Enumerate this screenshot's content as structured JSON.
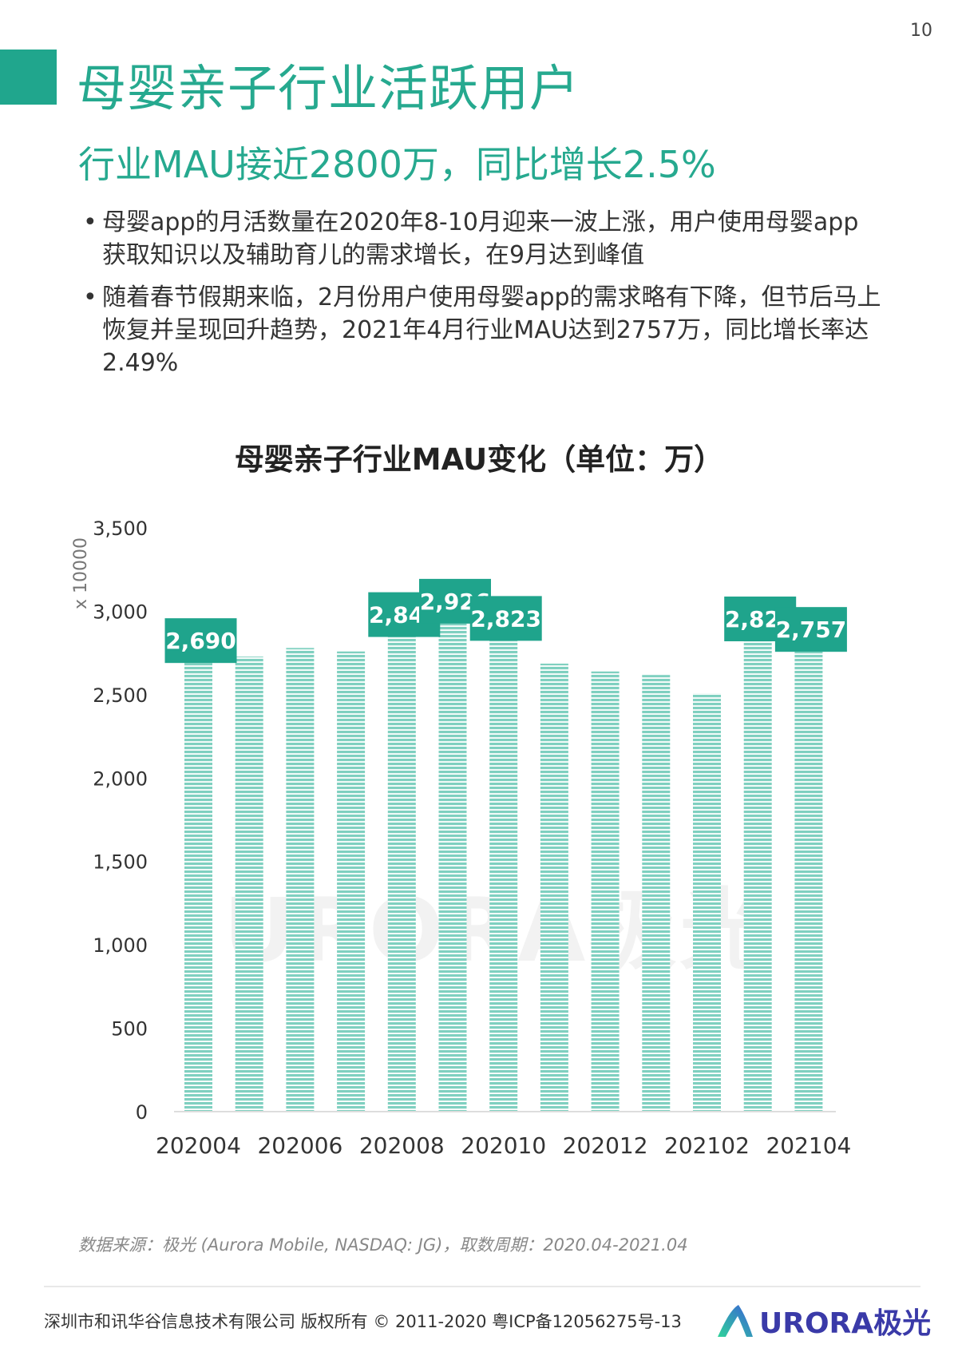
{
  "page_number": "10",
  "title": "母婴亲子行业活跃用户",
  "subtitle": "行业MAU接近2800万，同比增长2.5%",
  "bullets": [
    "母婴app的月活数量在2020年8-10月迎来一波上涨，用户使用母婴app获取知识以及辅助育儿的需求增长，在9月达到峰值",
    "随着春节假期来临，2月份用户使用母婴app的需求略有下降，但节后马上恢复并呈现回升趋势，2021年4月行业MAU达到2757万，同比增长率达2.49%"
  ],
  "bullet_symbol": "•",
  "colors": {
    "accent": "#20a68d",
    "bar": "#7fd0c0",
    "label_bg": "#1fa48c"
  },
  "chart_data": {
    "type": "bar",
    "title": "母婴亲子行业MAU变化（单位：万）",
    "ylabel": "x 10000",
    "xlabel": "",
    "ylim": [
      0,
      3500
    ],
    "yticks": [
      0,
      500,
      1000,
      1500,
      2000,
      2500,
      3000,
      3500
    ],
    "ytick_labels": [
      "0",
      "500",
      "1,000",
      "1,500",
      "2,000",
      "2,500",
      "3,000",
      "3,500"
    ],
    "categories": [
      "202004",
      "202005",
      "202006",
      "202007",
      "202008",
      "202009",
      "202010",
      "202011",
      "202012",
      "202101",
      "202102",
      "202103",
      "202104"
    ],
    "xtick_labels": [
      "202004",
      "202006",
      "202008",
      "202010",
      "202012",
      "202102",
      "202104"
    ],
    "values": [
      2690,
      2728,
      2780,
      2759,
      2846,
      2926,
      2823,
      2686,
      2639,
      2618,
      2508,
      2820,
      2757
    ],
    "data_labels": [
      {
        "index": 0,
        "text": "2,690"
      },
      {
        "index": 4,
        "text": "2,846"
      },
      {
        "index": 5,
        "text": "2,926"
      },
      {
        "index": 6,
        "text": "2,823"
      },
      {
        "index": 11,
        "text": "2,820"
      },
      {
        "index": 12,
        "text": "2,757"
      }
    ],
    "grid": false
  },
  "watermark": "URORA极光",
  "source": "数据来源：极光 (Aurora Mobile, NASDAQ: JG)，取数周期：2020.04-2021.04",
  "footer": "深圳市和讯华谷信息技术有限公司 版权所有 © 2011-2020 粤ICP备12056275号-13",
  "logo_text": "URORA极光"
}
